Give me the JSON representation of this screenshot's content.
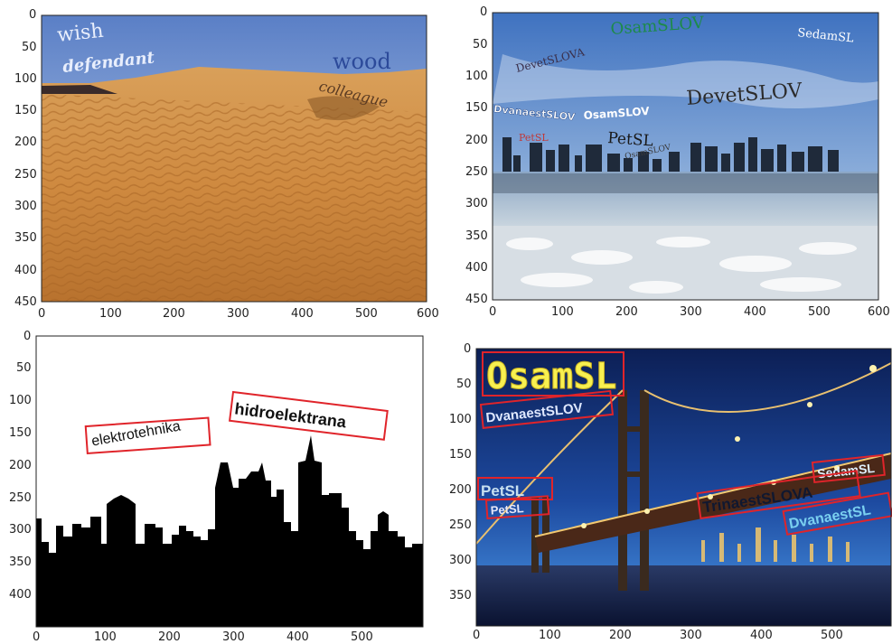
{
  "panels": [
    {
      "id": "desert",
      "scene": "desert-dunes",
      "words": [
        "wish",
        "defendant",
        "wood",
        "colleague"
      ],
      "x_ticks": [
        "0",
        "100",
        "200",
        "300",
        "400",
        "500",
        "600"
      ],
      "y_ticks": [
        "0",
        "50",
        "100",
        "150",
        "200",
        "250",
        "300",
        "350",
        "400",
        "450"
      ]
    },
    {
      "id": "city-ice",
      "scene": "city-skyline-frozen-river",
      "words": [
        "OsamSLOV",
        "SedamSL",
        "DevetSLOVA",
        "DevetSLOV",
        "DvanaestSLOV",
        "OsamSLOV",
        "PetSL",
        "PetSL",
        "OsamSLOV"
      ],
      "x_ticks": [
        "0",
        "100",
        "200",
        "300",
        "400",
        "500",
        "600"
      ],
      "y_ticks": [
        "0",
        "50",
        "100",
        "150",
        "200",
        "250",
        "300",
        "350",
        "400",
        "450"
      ]
    },
    {
      "id": "skyline-silhouette",
      "scene": "black-skyline-silhouette",
      "words": [
        "elektrotehnika",
        "hidroelektrana"
      ],
      "x_ticks": [
        "0",
        "100",
        "200",
        "300",
        "400",
        "500"
      ],
      "y_ticks": [
        "0",
        "50",
        "100",
        "150",
        "200",
        "250",
        "300",
        "350",
        "400"
      ]
    },
    {
      "id": "bridge-night",
      "scene": "bridge-at-night",
      "words": [
        "OsamSL",
        "DvanaestSLOV",
        "PetSL",
        "PetSL",
        "SedamSL",
        "TrinaestSLOVA",
        "DvanaestSL"
      ],
      "x_ticks": [
        "0",
        "100",
        "200",
        "300",
        "400",
        "500"
      ],
      "y_ticks": [
        "0",
        "50",
        "100",
        "150",
        "200",
        "250",
        "300",
        "350"
      ]
    }
  ],
  "colors": {
    "box_red": "#e0242a",
    "word_blue": "#2c4a9a",
    "word_green": "#1d8a4a"
  }
}
